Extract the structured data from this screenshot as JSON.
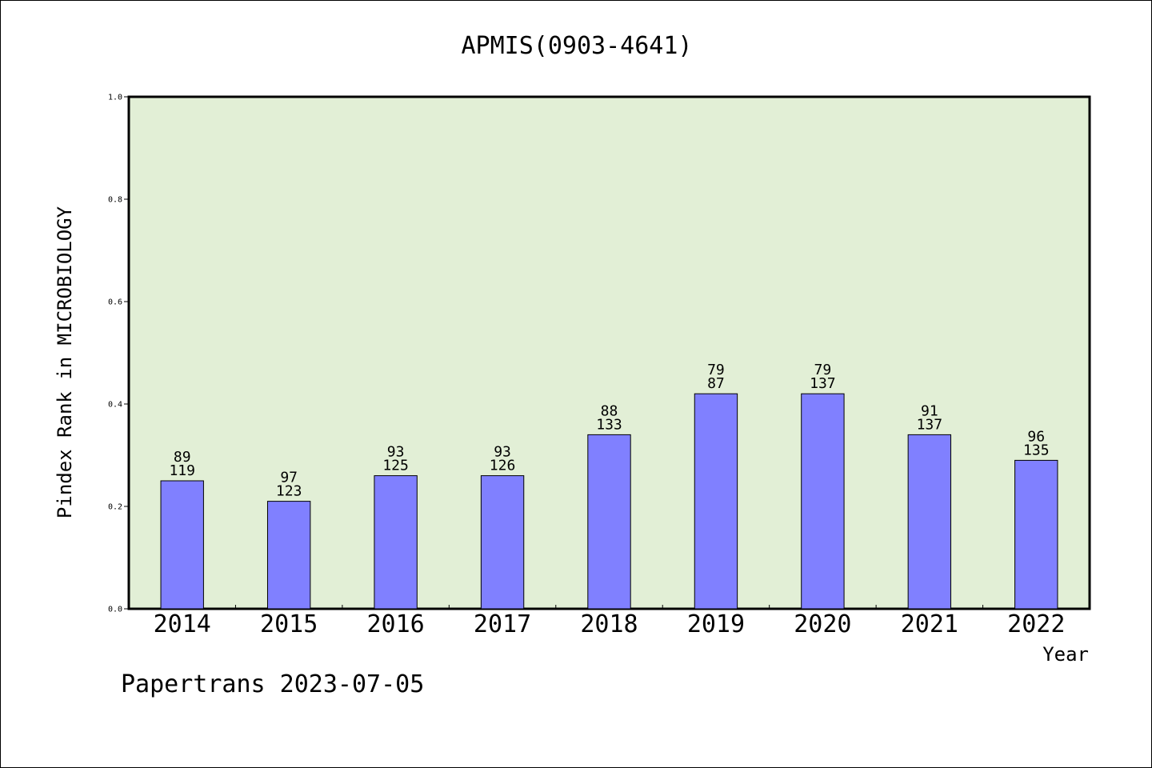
{
  "chart_data": {
    "type": "bar",
    "title": "APMIS(0903-4641)",
    "xlabel": "Year",
    "ylabel": "Pindex Rank in MICROBIOLOGY",
    "ylim": [
      0,
      1.0
    ],
    "y_ticks": [
      "0.0",
      "0.2",
      "0.4",
      "0.6",
      "0.8",
      "1.0"
    ],
    "grid": false,
    "categories": [
      "2014",
      "2015",
      "2016",
      "2017",
      "2018",
      "2019",
      "2020",
      "2021",
      "2022"
    ],
    "values": [
      0.25,
      0.21,
      0.26,
      0.26,
      0.34,
      0.42,
      0.42,
      0.34,
      0.29
    ],
    "rank_labels": [
      "89",
      "97",
      "93",
      "93",
      "88",
      "79",
      "79",
      "91",
      "96"
    ],
    "total_labels": [
      "119",
      "123",
      "125",
      "126",
      "133",
      "87",
      "137",
      "137",
      "135"
    ],
    "colors": {
      "bar_fill": "#8080ff",
      "plot_background": "#e2efd6",
      "axis": "#000000"
    }
  },
  "footer": {
    "note": "Papertrans 2023-07-05"
  }
}
